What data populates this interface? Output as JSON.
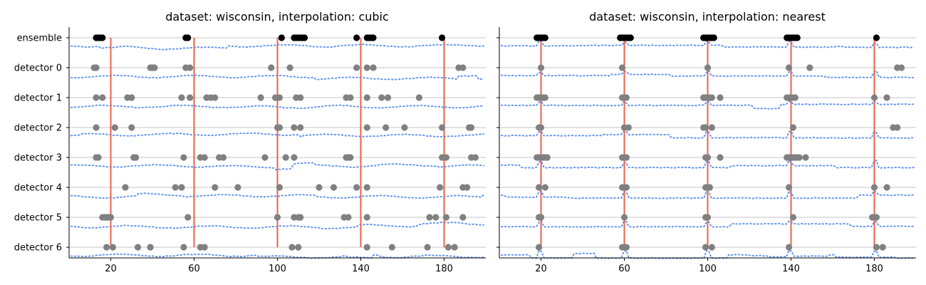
{
  "colors": {
    "axis": "#000000",
    "grid": "#b0b0b0",
    "signal": "#6495ed",
    "boundary": "#e8624a",
    "detector_point": "#808080",
    "ensemble_point": "#000000"
  },
  "chart_data": [
    {
      "type": "scatter",
      "title": "dataset: wisconsin, interpolation: cubic",
      "xlim": [
        0,
        200
      ],
      "xticks": [
        20,
        60,
        100,
        140,
        180
      ],
      "categories": [
        "ensemble",
        "detector 0",
        "detector 1",
        "detector 2",
        "detector 3",
        "detector 4",
        "detector 5",
        "detector 6"
      ],
      "grid_y": true,
      "boundaries": [
        20,
        60,
        100,
        140,
        180
      ],
      "series": [
        {
          "row": "ensemble",
          "x": [
            13,
            14,
            15,
            16,
            56,
            57,
            102,
            108,
            109,
            110,
            111,
            112,
            113,
            138,
            143,
            144,
            145,
            146,
            179
          ]
        },
        {
          "row": "detector 0",
          "x": [
            12,
            13,
            39,
            40,
            41,
            56,
            58,
            97,
            106,
            138,
            143,
            146,
            187,
            189
          ]
        },
        {
          "row": "detector 1",
          "x": [
            13,
            16,
            28,
            30,
            54,
            58,
            66,
            68,
            70,
            92,
            99,
            101,
            109,
            111,
            133,
            135,
            143,
            150,
            153,
            168
          ]
        },
        {
          "row": "detector 2",
          "x": [
            13,
            22,
            30,
            100,
            101,
            108,
            111,
            143,
            152,
            161,
            179,
            192,
            193
          ]
        },
        {
          "row": "detector 3",
          "x": [
            13,
            14,
            31,
            32,
            55,
            63,
            65,
            72,
            74,
            94,
            104,
            108,
            133,
            134,
            135,
            179,
            181,
            193,
            195
          ]
        },
        {
          "row": "detector 4",
          "x": [
            27,
            51,
            54,
            70,
            81,
            101,
            120,
            127,
            138,
            143,
            178,
            189,
            191
          ]
        },
        {
          "row": "detector 5",
          "x": [
            16,
            17,
            18,
            19,
            20,
            57,
            100,
            108,
            110,
            111,
            132,
            134,
            143,
            173,
            176,
            181,
            189
          ]
        },
        {
          "row": "detector 6",
          "x": [
            18,
            21,
            33,
            39,
            55,
            63,
            65,
            107,
            110,
            143,
            155,
            172,
            182,
            185
          ]
        }
      ]
    },
    {
      "type": "scatter",
      "title": "dataset: wisconsin, interpolation: nearest",
      "xlim": [
        0,
        200
      ],
      "xticks": [
        20,
        60,
        100,
        140,
        180
      ],
      "categories": [
        "ensemble",
        "detector 0",
        "detector 1",
        "detector 2",
        "detector 3",
        "detector 4",
        "detector 5",
        "detector 6"
      ],
      "grid_y": true,
      "boundaries": [
        20,
        60,
        100,
        140,
        180
      ],
      "series": [
        {
          "row": "ensemble",
          "x": [
            18,
            19,
            20,
            21,
            22,
            58,
            59,
            60,
            61,
            62,
            63,
            98,
            99,
            100,
            101,
            102,
            103,
            138,
            139,
            140,
            141,
            142,
            143,
            181
          ]
        },
        {
          "row": "detector 0",
          "x": [
            20,
            59,
            100,
            139,
            149,
            191,
            193
          ]
        },
        {
          "row": "detector 1",
          "x": [
            18,
            19,
            20,
            21,
            22,
            59,
            60,
            61,
            98,
            99,
            100,
            101,
            102,
            106,
            138,
            139,
            140,
            141,
            142,
            180,
            186
          ]
        },
        {
          "row": "detector 2",
          "x": [
            19,
            20,
            60,
            62,
            98,
            99,
            102,
            141,
            189,
            191
          ]
        },
        {
          "row": "detector 3",
          "x": [
            18,
            19,
            20,
            21,
            22,
            23,
            59,
            60,
            61,
            99,
            100,
            106,
            138,
            139,
            140,
            141,
            142,
            143,
            144,
            147
          ]
        },
        {
          "row": "detector 4",
          "x": [
            19,
            22,
            59,
            60,
            61,
            99,
            100,
            101,
            139,
            180,
            186
          ]
        },
        {
          "row": "detector 5",
          "x": [
            19,
            20,
            60,
            99,
            100,
            141,
            179,
            180,
            181
          ]
        },
        {
          "row": "detector 6",
          "x": [
            19,
            59,
            60,
            61,
            99,
            102,
            139,
            181,
            184
          ]
        }
      ]
    }
  ]
}
